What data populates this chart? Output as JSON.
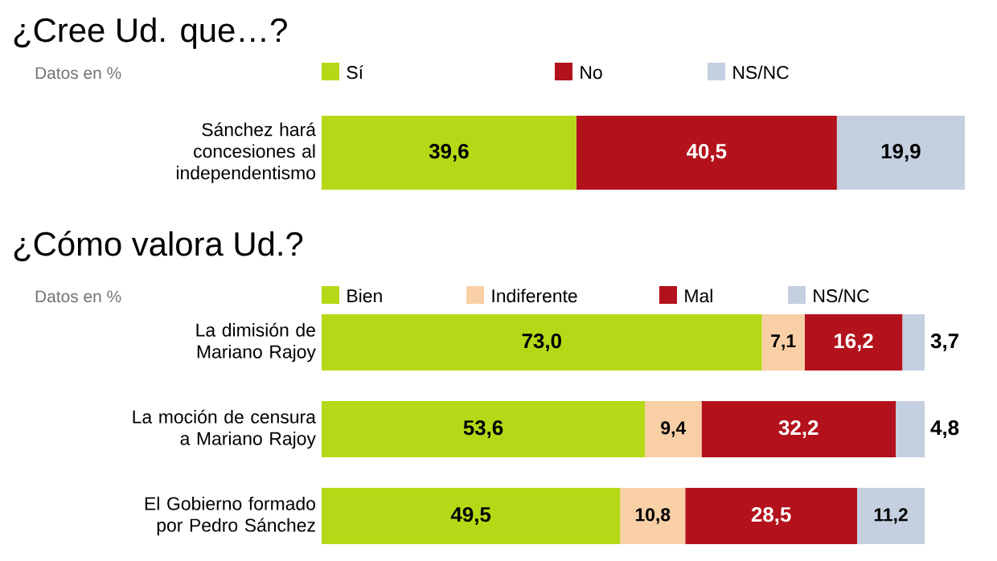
{
  "chart_data": [
    {
      "type": "bar",
      "orientation": "horizontal",
      "stacked": true,
      "title": "¿Cree Ud. que…?",
      "subtitle": "Datos en %",
      "legend": "top",
      "categories": [
        "Sánchez hará concesiones al independentismo"
      ],
      "series": [
        {
          "name": "Sí",
          "color": "#b5d916",
          "values": [
            39.6
          ],
          "value_labels": [
            "39,6"
          ]
        },
        {
          "name": "No",
          "color": "#b3121c",
          "values": [
            40.5
          ],
          "value_labels": [
            "40,5"
          ]
        },
        {
          "name": "NS/NC",
          "color": "#c4cfe0",
          "values": [
            19.9
          ],
          "value_labels": [
            "19,9"
          ]
        }
      ]
    },
    {
      "type": "bar",
      "orientation": "horizontal",
      "stacked": true,
      "title": "¿Cómo valora Ud.?",
      "subtitle": "Datos en %",
      "legend": "top",
      "categories": [
        "La dimisión de Mariano Rajoy",
        "La moción de censura a Mariano Rajoy",
        "El Gobierno formado por Pedro Sánchez"
      ],
      "series": [
        {
          "name": "Bien",
          "color": "#b5d916",
          "values": [
            73.0,
            53.6,
            49.5
          ],
          "value_labels": [
            "73,0",
            "53,6",
            "49,5"
          ]
        },
        {
          "name": "Indiferente",
          "color": "#f9cfa6",
          "values": [
            7.1,
            9.4,
            10.8
          ],
          "value_labels": [
            "7,1",
            "9,4",
            "10,8"
          ]
        },
        {
          "name": "Mal",
          "color": "#b3121c",
          "values": [
            16.2,
            32.2,
            28.5
          ],
          "value_labels": [
            "16,2",
            "32,2",
            "28,5"
          ]
        },
        {
          "name": "NS/NC",
          "color": "#c4cfe0",
          "values": [
            3.7,
            4.8,
            11.2
          ],
          "value_labels": [
            "3,7",
            "4,8",
            "11,2"
          ]
        }
      ]
    }
  ]
}
